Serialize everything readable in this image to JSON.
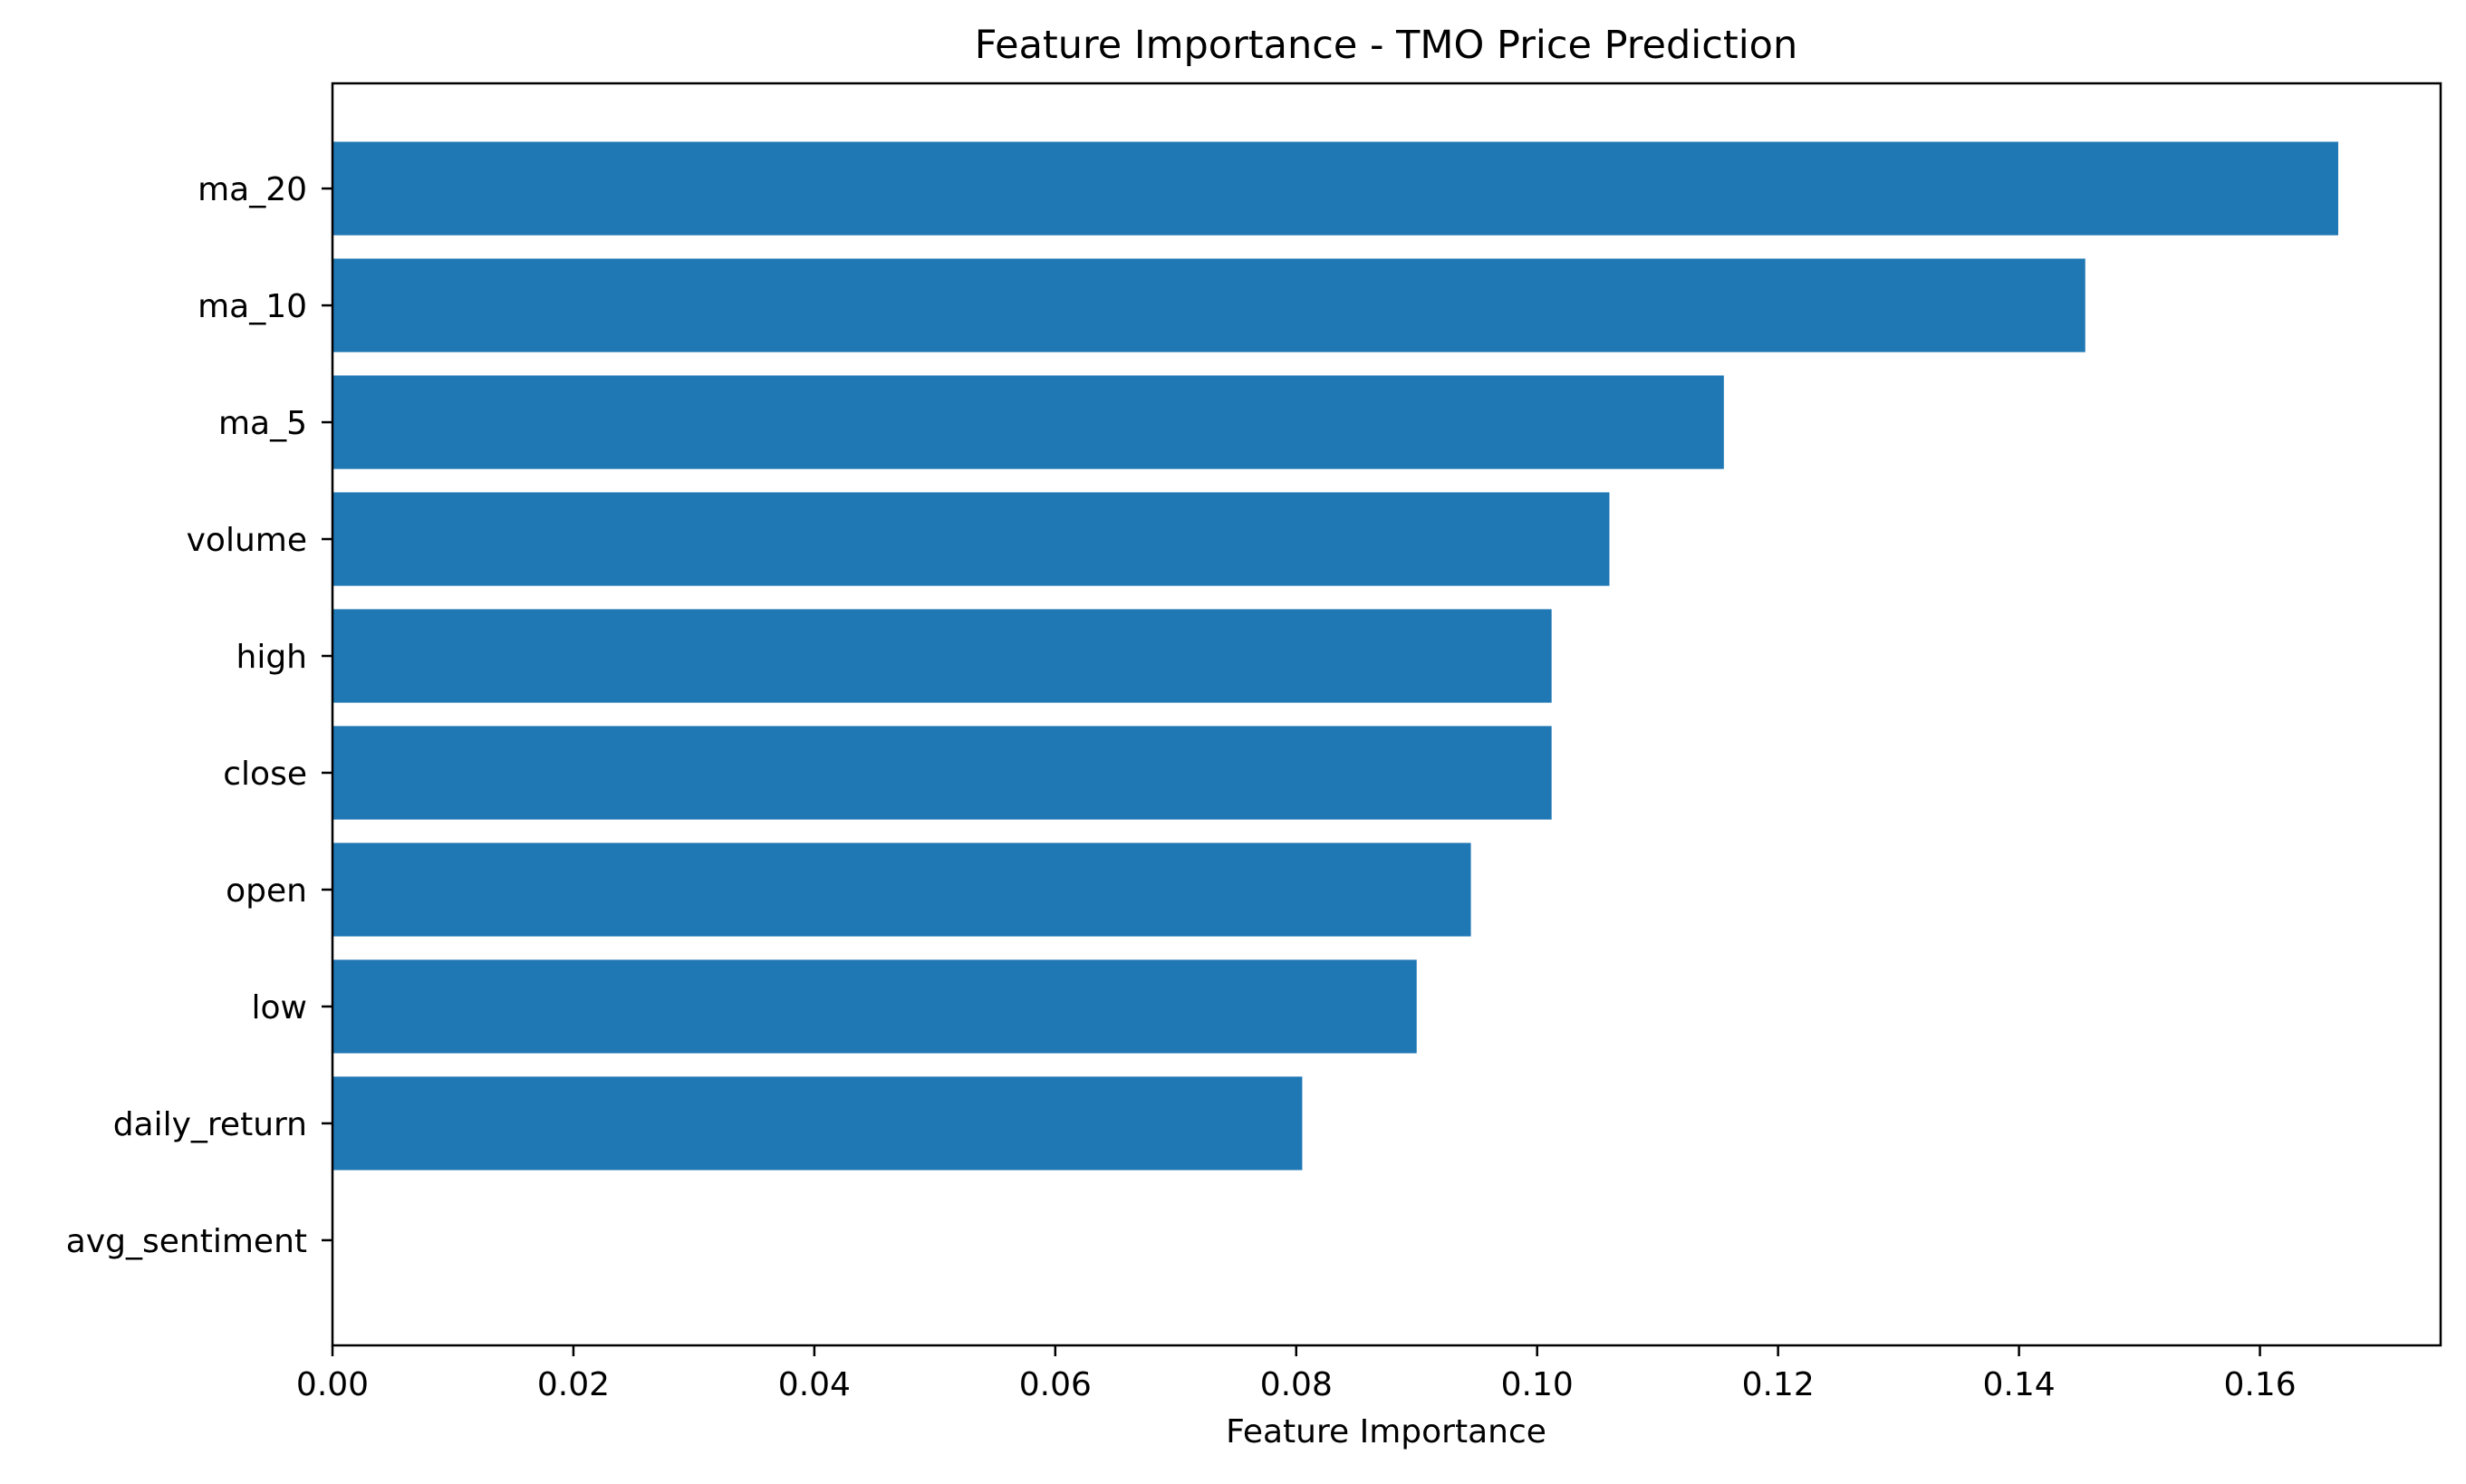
{
  "chart_data": {
    "type": "bar",
    "orientation": "horizontal",
    "title": "Feature Importance - TMO Price Prediction",
    "xlabel": "Feature Importance",
    "ylabel": "",
    "categories": [
      "ma_20",
      "ma_10",
      "ma_5",
      "volume",
      "high",
      "close",
      "open",
      "low",
      "daily_return",
      "avg_sentiment"
    ],
    "values": [
      0.1665,
      0.1455,
      0.1155,
      0.106,
      0.1012,
      0.1012,
      0.0945,
      0.09,
      0.0805,
      0.0
    ],
    "xlim": [
      0,
      0.175
    ],
    "xticks": [
      "0.00",
      "0.02",
      "0.04",
      "0.06",
      "0.08",
      "0.10",
      "0.12",
      "0.14",
      "0.16"
    ],
    "bar_color": "#1f77b4",
    "grid": false,
    "legend": "none"
  }
}
